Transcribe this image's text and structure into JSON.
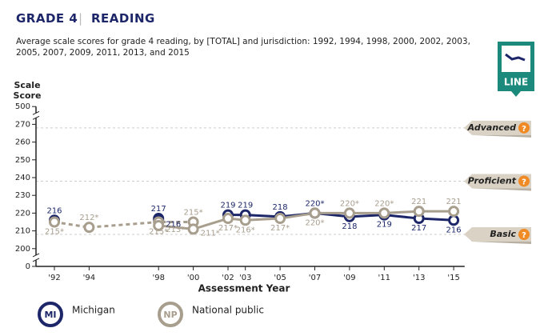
{
  "header": {
    "grade": "GRADE 4",
    "subject": "READING"
  },
  "chart_data": {
    "type": "line",
    "subtitle": "Average scale scores for grade 4 reading, by [TOTAL] and jurisdiction: 1992, 1994, 1998, 2000, 2002, 2003, 2005, 2007, 2009, 2011, 2013, and 2015",
    "ylabel": "Scale Score",
    "xlabel": "Assessment Year",
    "x": [
      1992,
      1994,
      1998,
      2000,
      2002,
      2003,
      2005,
      2007,
      2009,
      2011,
      2013,
      2015
    ],
    "xlim": [
      1991,
      2016
    ],
    "xticks": [
      {
        "value": 1992,
        "label": "'92"
      },
      {
        "value": 1994,
        "label": "'94"
      },
      {
        "value": 1998,
        "label": "'98"
      },
      {
        "value": 2000,
        "label": "'00"
      },
      {
        "value": 2002,
        "label": "'02"
      },
      {
        "value": 2003,
        "label": "'03"
      },
      {
        "value": 2005,
        "label": "'05"
      },
      {
        "value": 2007,
        "label": "'07"
      },
      {
        "value": 2009,
        "label": "'09"
      },
      {
        "value": 2011,
        "label": "'11"
      },
      {
        "value": 2013,
        "label": "'13"
      },
      {
        "value": 2015,
        "label": "'15"
      }
    ],
    "ylim": [
      0,
      500
    ],
    "yticks": [
      0,
      200,
      210,
      220,
      230,
      240,
      250,
      260,
      270,
      500
    ],
    "axis_breaks": true,
    "series": [
      {
        "name": "Michigan",
        "abbr": "MI",
        "color": "#1c2669",
        "dashed_values": [
          216,
          null,
          217,
          null,
          null,
          null,
          null,
          null,
          null,
          null,
          null,
          null
        ],
        "dashed_value_labels": [
          "216",
          null,
          "217",
          null,
          null,
          null,
          null,
          null,
          null,
          null,
          null,
          null
        ],
        "values": [
          null,
          null,
          216,
          null,
          219,
          219,
          218,
          220,
          218,
          219,
          217,
          216
        ],
        "value_labels": [
          null,
          null,
          "216",
          null,
          "219",
          "219",
          "218",
          "220*",
          "218",
          "219",
          "217",
          "216"
        ]
      },
      {
        "name": "National public",
        "abbr": "NP",
        "color": "#a89e8e",
        "dashed_values": [
          215,
          212,
          215,
          215,
          null,
          null,
          null,
          null,
          null,
          null,
          null,
          null
        ],
        "dashed_value_labels": [
          "215*",
          "212*",
          "215*",
          "215*",
          null,
          null,
          null,
          null,
          null,
          null,
          null,
          null
        ],
        "values": [
          null,
          null,
          213,
          211,
          217,
          216,
          217,
          220,
          220,
          220,
          221,
          221
        ],
        "value_labels": [
          null,
          null,
          "213*",
          "211*",
          "217*",
          "216*",
          "217*",
          "220*",
          "220*",
          "220*",
          "221",
          "221"
        ]
      }
    ],
    "reference_lines": [
      {
        "label": "Advanced",
        "value": 268
      },
      {
        "label": "Proficient",
        "value": 238
      },
      {
        "label": "Basic",
        "value": 208
      }
    ],
    "view_button": "LINE"
  }
}
